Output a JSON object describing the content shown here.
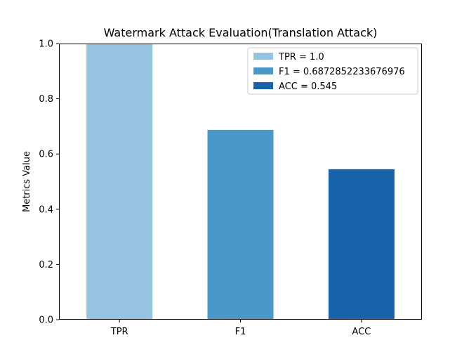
{
  "chart_data": {
    "type": "bar",
    "title": "Watermark Attack Evaluation(Translation Attack)",
    "xlabel": "",
    "ylabel": "Metrics Value",
    "categories": [
      "TPR",
      "F1",
      "ACC"
    ],
    "values": [
      1.0,
      0.6872852233676976,
      0.545
    ],
    "colors": [
      "#96c4e0",
      "#4a98c9",
      "#1764ab"
    ],
    "ylim": [
      0,
      1.0
    ],
    "yticks": [
      "0.0",
      "0.2",
      "0.4",
      "0.6",
      "0.8",
      "1.0"
    ],
    "legend": {
      "position": "top-right",
      "entries": [
        "TPR = 1.0",
        "F1 = 0.6872852233676976",
        "ACC = 0.545"
      ]
    },
    "grid": false
  }
}
